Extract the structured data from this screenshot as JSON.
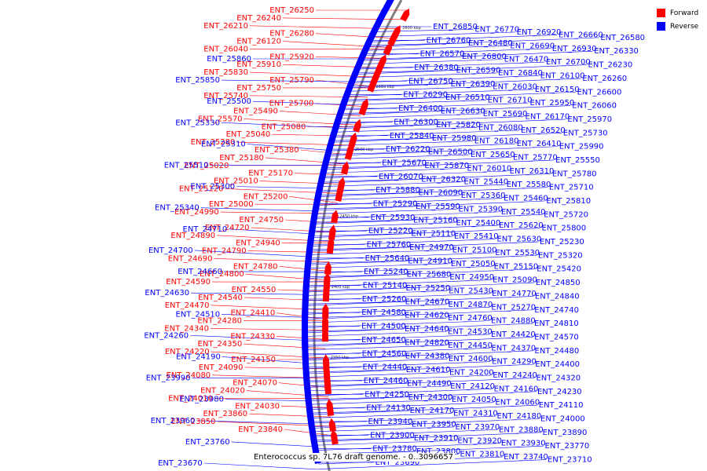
{
  "colors": {
    "forward": "#ff0000",
    "reverse": "#0000ff",
    "backbone": "#808080"
  },
  "legend": [
    {
      "label": "Forward",
      "strand": "forward"
    },
    {
      "label": "Reverse",
      "strand": "reverse"
    }
  ],
  "caption": "Enterococcus sp. 7L76 draft genome. - 0..3096657",
  "ticks": [
    "2600 kbp",
    "2550 kbp",
    "2500 kbp",
    "2450 kbp",
    "2400 kbp",
    "2350 kbp"
  ],
  "forward_labels": [
    "ENT_26250",
    "ENT_26240",
    "ENT_26210",
    "ENT_26280",
    "ENT_26120",
    "ENT_26040",
    "ENT_25920",
    "ENT_25910",
    "ENT_25830",
    "ENT_25790",
    "ENT_25750",
    "ENT_25740",
    "ENT_25700",
    "ENT_25490",
    "ENT_25570",
    "ENT_25080",
    "ENT_25040",
    "ENT_25280",
    "ENT_25380",
    "ENT_25180",
    "ENT_25020",
    "ENT_25170",
    "ENT_25010",
    "ENT_25120",
    "ENT_25200",
    "ENT_25000",
    "ENT_24990",
    "ENT_24750",
    "ENT_24720",
    "ENT_24890",
    "ENT_24940",
    "ENT_24790",
    "ENT_24690",
    "ENT_24780",
    "ENT_24800",
    "ENT_24590",
    "ENT_24550",
    "ENT_24540",
    "ENT_24470",
    "ENT_24410",
    "ENT_24280",
    "ENT_24340",
    "ENT_24330",
    "ENT_24350",
    "ENT_24220",
    "ENT_24150",
    "ENT_24090",
    "ENT_24080",
    "ENT_24070",
    "ENT_24020",
    "ENT_24010",
    "ENT_24030",
    "ENT_23860",
    "ENT_23850",
    "ENT_23840"
  ],
  "reverse_left_labels": [
    "ENT_25860",
    "ENT_25850",
    "ENT_25500",
    "ENT_25330",
    "ENT_25310",
    "ENT_25510",
    "ENT_25300",
    "ENT_25340",
    "ENT_24710",
    "ENT_24700",
    "ENT_24660",
    "ENT_24630",
    "ENT_24510",
    "ENT_24260",
    "ENT_24190",
    "ENT_23990",
    "ENT_23980",
    "ENT_23960",
    "ENT_23760",
    "ENT_23670"
  ],
  "reverse_right_labels": [
    "ENT_26850",
    "ENT_26770",
    "ENT_26920",
    "ENT_26660",
    "ENT_26580",
    "ENT_26760",
    "ENT_26480",
    "ENT_26690",
    "ENT_26930",
    "ENT_26330",
    "ENT_26570",
    "ENT_26800",
    "ENT_26470",
    "ENT_26700",
    "ENT_26230",
    "ENT_26380",
    "ENT_26590",
    "ENT_26840",
    "ENT_26100",
    "ENT_26260",
    "ENT_26750",
    "ENT_26390",
    "ENT_26030",
    "ENT_26150",
    "ENT_26600",
    "ENT_26290",
    "ENT_26510",
    "ENT_26710",
    "ENT_25950",
    "ENT_26060",
    "ENT_26400",
    "ENT_26630",
    "ENT_25690",
    "ENT_26170",
    "ENT_25970",
    "ENT_26300",
    "ENT_25820",
    "ENT_26080",
    "ENT_26520",
    "ENT_25730",
    "ENT_25840",
    "ENT_25980",
    "ENT_26180",
    "ENT_26410",
    "ENT_25990",
    "ENT_26220",
    "ENT_26500",
    "ENT_25650",
    "ENT_25770",
    "ENT_25550",
    "ENT_25670",
    "ENT_25870",
    "ENT_26010",
    "ENT_26310",
    "ENT_25780",
    "ENT_26070",
    "ENT_26320",
    "ENT_25440",
    "ENT_25580",
    "ENT_25710",
    "ENT_25880",
    "ENT_26090",
    "ENT_25360",
    "ENT_25460",
    "ENT_25810",
    "ENT_25290",
    "ENT_25590",
    "ENT_25390",
    "ENT_25540",
    "ENT_25720",
    "ENT_25930",
    "ENT_25160",
    "ENT_25400",
    "ENT_25620",
    "ENT_25800",
    "ENT_25220",
    "ENT_25110",
    "ENT_25410",
    "ENT_25630",
    "ENT_25230",
    "ENT_25760",
    "ENT_24970",
    "ENT_25100",
    "ENT_25530",
    "ENT_25320",
    "ENT_25640",
    "ENT_24910",
    "ENT_25050",
    "ENT_25150",
    "ENT_25420",
    "ENT_25240",
    "ENT_25680",
    "ENT_24950",
    "ENT_25090",
    "ENT_24850",
    "ENT_25140",
    "ENT_25250",
    "ENT_25430",
    "ENT_24770",
    "ENT_24840",
    "ENT_25260",
    "ENT_24670",
    "ENT_24870",
    "ENT_25270",
    "ENT_24740",
    "ENT_24580",
    "ENT_24620",
    "ENT_24760",
    "ENT_24880",
    "ENT_24810",
    "ENT_24500",
    "ENT_24640",
    "ENT_24530",
    "ENT_24420",
    "ENT_24570",
    "ENT_24650",
    "ENT_24820",
    "ENT_24450",
    "ENT_24370",
    "ENT_24480",
    "ENT_24560",
    "ENT_24380",
    "ENT_24600",
    "ENT_24290",
    "ENT_24400",
    "ENT_24440",
    "ENT_24610",
    "ENT_24200",
    "ENT_24240",
    "ENT_24320",
    "ENT_24460",
    "ENT_24490",
    "ENT_24120",
    "ENT_24160",
    "ENT_24230",
    "ENT_24250",
    "ENT_24300",
    "ENT_24050",
    "ENT_24060",
    "ENT_24110",
    "ENT_24130",
    "ENT_24170",
    "ENT_24310",
    "ENT_24180",
    "ENT_24000",
    "ENT_23940",
    "ENT_23950",
    "ENT_23970",
    "ENT_23880",
    "ENT_23890",
    "ENT_23900",
    "ENT_23910",
    "ENT_23920",
    "ENT_23930",
    "ENT_23770",
    "ENT_23780",
    "ENT_23800",
    "ENT_23810",
    "ENT_23740",
    "ENT_23710",
    "ENT_23690"
  ]
}
